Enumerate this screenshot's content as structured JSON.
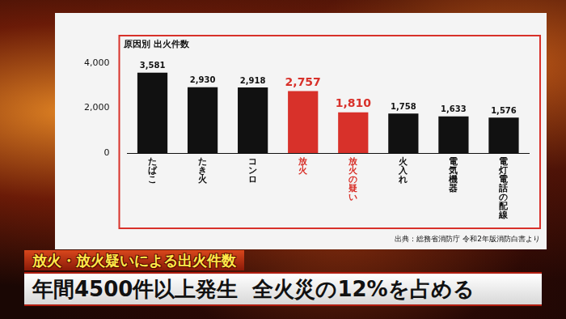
{
  "chart_data": {
    "type": "bar",
    "title": "原因別 出火件数",
    "categories": [
      "たばこ",
      "たき火",
      "コンロ",
      "放火",
      "放火の疑い",
      "火入れ",
      "電気機器",
      "電灯電話の配線"
    ],
    "values": [
      3581,
      2930,
      2918,
      2757,
      1810,
      1758,
      1633,
      1576
    ],
    "value_labels": [
      "3,581",
      "2,930",
      "2,918",
      "2,757",
      "1,810",
      "1,758",
      "1,633",
      "1,576"
    ],
    "colors": [
      "#111111",
      "#111111",
      "#111111",
      "#d8312a",
      "#d8312a",
      "#111111",
      "#111111",
      "#111111"
    ],
    "ylim": [
      0,
      4000
    ],
    "yticks": [
      0,
      {
        "value": 2000,
        "label": "2,000"
      },
      {
        "value": 4000,
        "label": "4,000"
      }
    ],
    "grid": false,
    "data_labels": true,
    "annotations": [
      "出典：総務省消防庁 令和2年版消防白書より"
    ]
  },
  "caption": {
    "tag": "放火・放火疑いによる出火件数",
    "headline": "年間4500件以上発生",
    "sub": "全火災の12%を占める"
  }
}
